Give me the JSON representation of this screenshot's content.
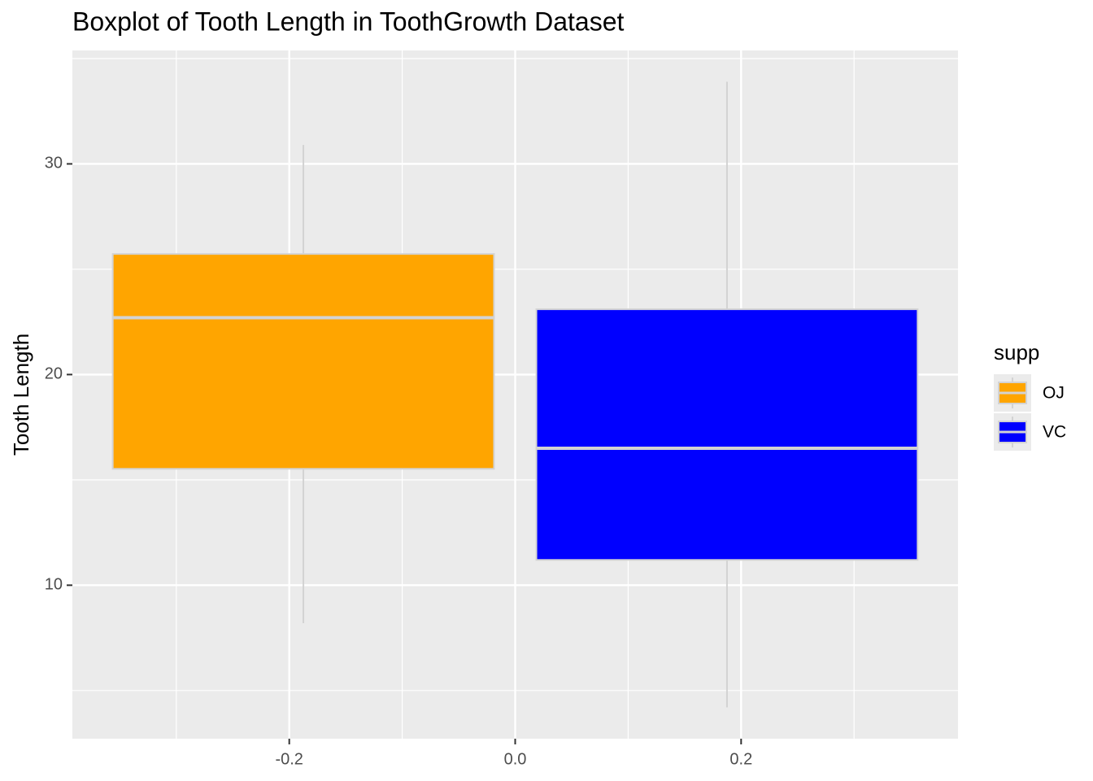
{
  "chart_data": {
    "type": "box",
    "title": "Boxplot of Tooth Length in ToothGrowth Dataset",
    "y_label": "Tooth Length",
    "legend_title": "supp",
    "outline_color": "#d3d3d3",
    "series": [
      {
        "name": "OJ",
        "color": "#ffa500",
        "x": -0.1875,
        "width": 0.3375,
        "min": 8.2,
        "q1": 15.525,
        "median": 22.7,
        "q3": 25.725,
        "max": 30.9
      },
      {
        "name": "VC",
        "color": "#0000ff",
        "x": 0.1875,
        "width": 0.3375,
        "min": 4.2,
        "q1": 11.2,
        "median": 16.5,
        "q3": 23.1,
        "max": 33.9
      }
    ],
    "xlim": [
      -0.392,
      0.392
    ],
    "xticks": [
      -0.2,
      {
        "value": 0,
        "label": "0.0"
      },
      0.2
    ],
    "x_minor_grid": [
      -0.3,
      -0.1,
      0.1,
      0.3
    ],
    "ylim": [
      2.715,
      35.385
    ],
    "yticks": [
      10,
      20,
      30
    ],
    "y_minor_grid": [
      5,
      15,
      25,
      35
    ],
    "grid": true,
    "legend_position": "right"
  }
}
